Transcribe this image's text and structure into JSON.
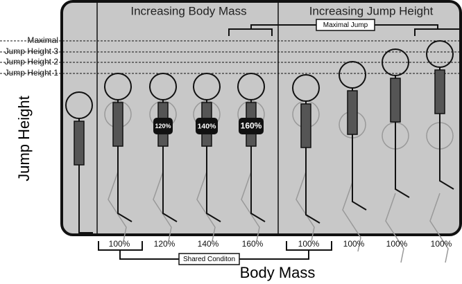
{
  "header": {
    "left_title": "Increasing Body Mass",
    "right_title": "Increasing Jump Height"
  },
  "maximal_jump_label": "Maximal Jump",
  "height_levels": [
    "Maximal",
    "Jump Height 3",
    "Jump Height 2",
    "Jump Height 1"
  ],
  "y_axis_label": "Jump Height",
  "mass_badges": [
    "120%",
    "140%",
    "160%"
  ],
  "mass_labels": [
    "100%",
    "120%",
    "140%",
    "160%",
    "100%",
    "100%",
    "100%",
    "100%"
  ],
  "shared_condition_label": "Shared Conditon",
  "x_axis_label": "Body Mass"
}
